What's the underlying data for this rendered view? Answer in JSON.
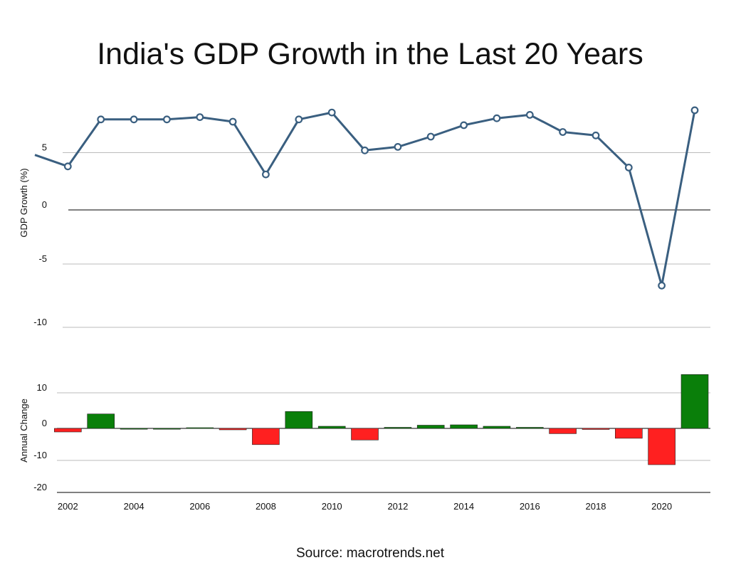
{
  "chart_data": {
    "type": "line+bar",
    "title": "India's GDP Growth in the Last 20 Years",
    "source": "Source: macrotrends.net",
    "colors": {
      "line": "#3a5f80",
      "marker_fill": "#ffffff",
      "positive_bar": "#0a7f0a",
      "negative_bar": "#ff2020",
      "grid": "#bbbbbb",
      "zero_line": "#000000"
    },
    "x": [
      2001,
      2002,
      2003,
      2004,
      2005,
      2006,
      2007,
      2008,
      2009,
      2010,
      2011,
      2012,
      2013,
      2014,
      2015,
      2016,
      2017,
      2018,
      2019,
      2020,
      2021
    ],
    "x_tick_labels": [
      "2002",
      "2004",
      "2006",
      "2008",
      "2010",
      "2012",
      "2014",
      "2016",
      "2018",
      "2020"
    ],
    "gdp_growth": {
      "ylabel": "GDP Growth (%)",
      "ylim": [
        -10,
        10
      ],
      "y_ticks": [
        5,
        0,
        -5,
        -10
      ],
      "values": [
        4.8,
        3.8,
        7.9,
        7.9,
        7.9,
        8.1,
        7.7,
        3.1,
        7.9,
        8.5,
        5.2,
        5.5,
        6.4,
        7.4,
        8.0,
        8.3,
        6.8,
        6.5,
        3.7,
        -6.6,
        8.7
      ]
    },
    "annual_change": {
      "ylabel": "Annual Change",
      "ylim": [
        -20,
        15
      ],
      "y_ticks": [
        10,
        0,
        -10,
        -20
      ],
      "values": [
        null,
        -1.0,
        4.1,
        0.0,
        0.0,
        0.2,
        -0.4,
        -4.6,
        4.8,
        0.6,
        -3.3,
        0.3,
        0.9,
        1.0,
        0.6,
        0.3,
        -1.5,
        -0.3,
        -2.8,
        -10.3,
        15.3
      ]
    }
  }
}
